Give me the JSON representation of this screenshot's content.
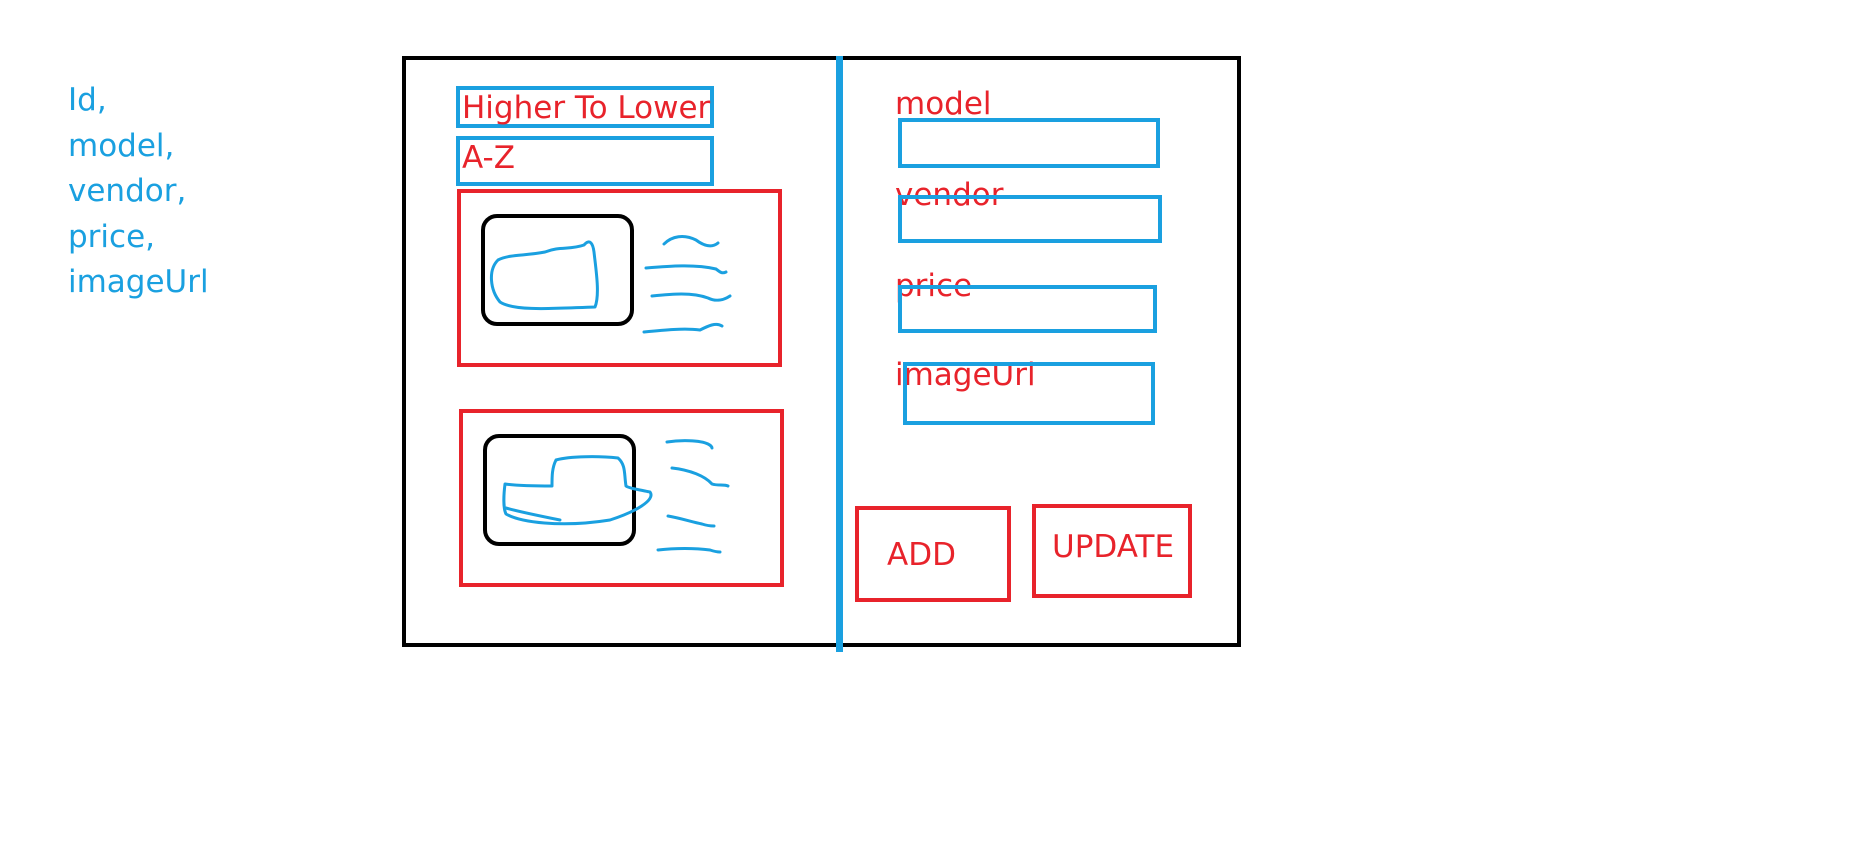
{
  "field_list": [
    "Id,",
    "model,",
    "vendor,",
    "price,",
    "imageUrl"
  ],
  "sort_options": [
    "Higher To Lower",
    "A-Z"
  ],
  "form": {
    "labels": {
      "model": "model",
      "vendor": "vendor",
      "price": "price",
      "imageUrl": "imageUrl"
    }
  },
  "buttons": {
    "add": "ADD",
    "update": "UPDATE"
  },
  "colors": {
    "blue": "#1aa0e0",
    "red": "#e8232b",
    "black": "#000000"
  }
}
